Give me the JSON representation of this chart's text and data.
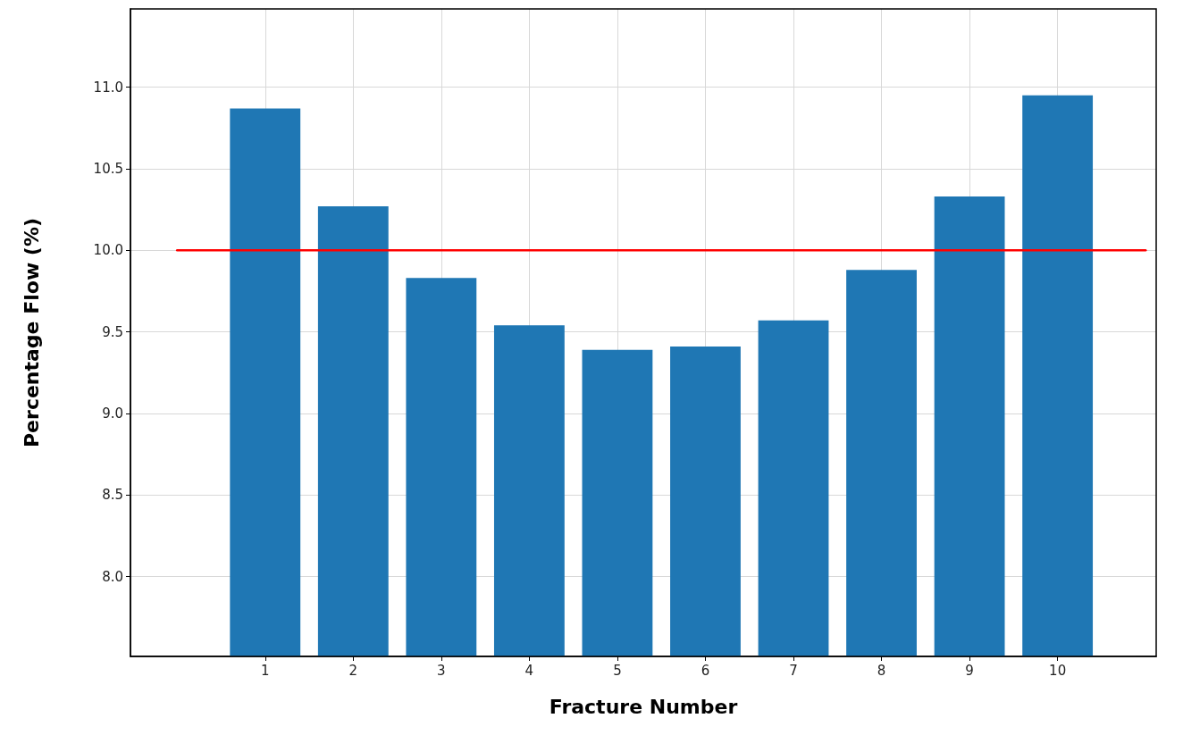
{
  "chart_data": {
    "type": "bar",
    "xlabel": "Fracture Number",
    "ylabel": "Percentage Flow (%)",
    "x": [
      1,
      2,
      3,
      4,
      5,
      6,
      7,
      8,
      9,
      10
    ],
    "series": [
      {
        "color": "#1f77b4",
        "values": [
          10.87,
          10.27,
          9.83,
          9.54,
          9.39,
          9.41,
          9.57,
          9.88,
          10.33,
          10.95
        ]
      },
      {
        "type": "line",
        "color": "#ff0000",
        "x": [
          0,
          11
        ],
        "values": [
          10.0,
          10.0
        ]
      }
    ],
    "xlim": [
      -0.53,
      11.12
    ],
    "xticks": [
      1,
      2,
      3,
      4,
      5,
      6,
      7,
      8,
      9,
      10
    ],
    "ylim": [
      7.51,
      11.48
    ],
    "yticks": [
      {
        "value": 8,
        "label": "8.0"
      },
      {
        "value": 8.5,
        "label": "8.5"
      },
      {
        "value": 9,
        "label": "9.0"
      },
      {
        "value": 9.5,
        "label": "9.5"
      },
      {
        "value": 10,
        "label": "10.0"
      },
      {
        "value": 10.5,
        "label": "10.5"
      },
      {
        "value": 11,
        "label": "11.0"
      }
    ],
    "grid": true,
    "marker": "none"
  }
}
